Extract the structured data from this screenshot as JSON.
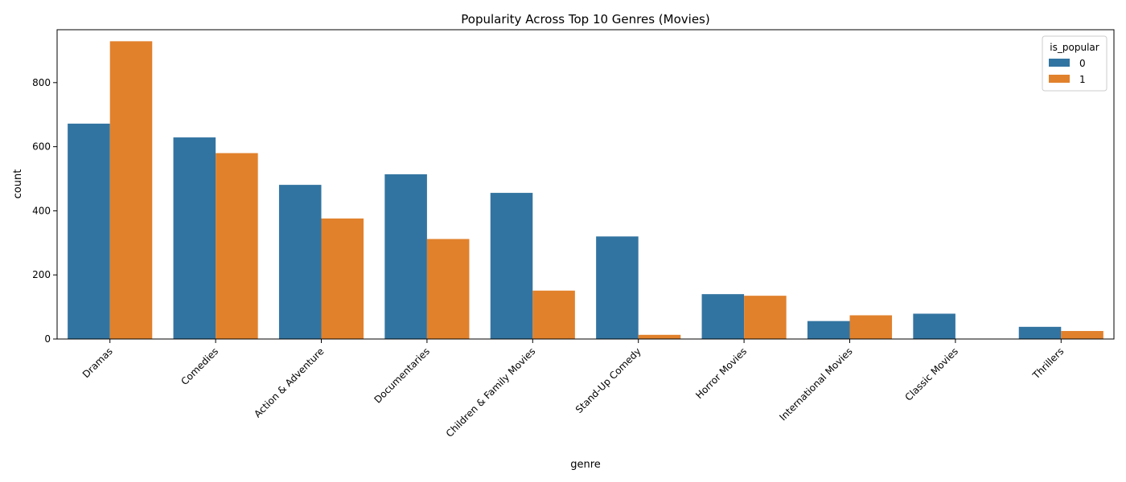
{
  "chart_data": {
    "type": "bar",
    "title": "Popularity Across Top 10 Genres (Movies)",
    "xlabel": "genre",
    "ylabel": "count",
    "ylim": [
      0,
      965
    ],
    "yticks": [
      0,
      200,
      400,
      600,
      800
    ],
    "categories": [
      "Dramas",
      "Comedies",
      "Action & Adventure",
      "Documentaries",
      "Children & Family Movies",
      "Stand-Up Comedy",
      "Horror Movies",
      "International Movies",
      "Classic Movies",
      "Thrillers"
    ],
    "legend": {
      "title": "is_popular",
      "position": "top-right"
    },
    "series": [
      {
        "name": "0",
        "color": "#3274a1",
        "values": [
          672,
          629,
          481,
          514,
          456,
          320,
          140,
          56,
          79,
          38
        ]
      },
      {
        "name": "1",
        "color": "#e1812c",
        "values": [
          929,
          580,
          376,
          312,
          151,
          13,
          135,
          74,
          0,
          25
        ]
      }
    ]
  }
}
